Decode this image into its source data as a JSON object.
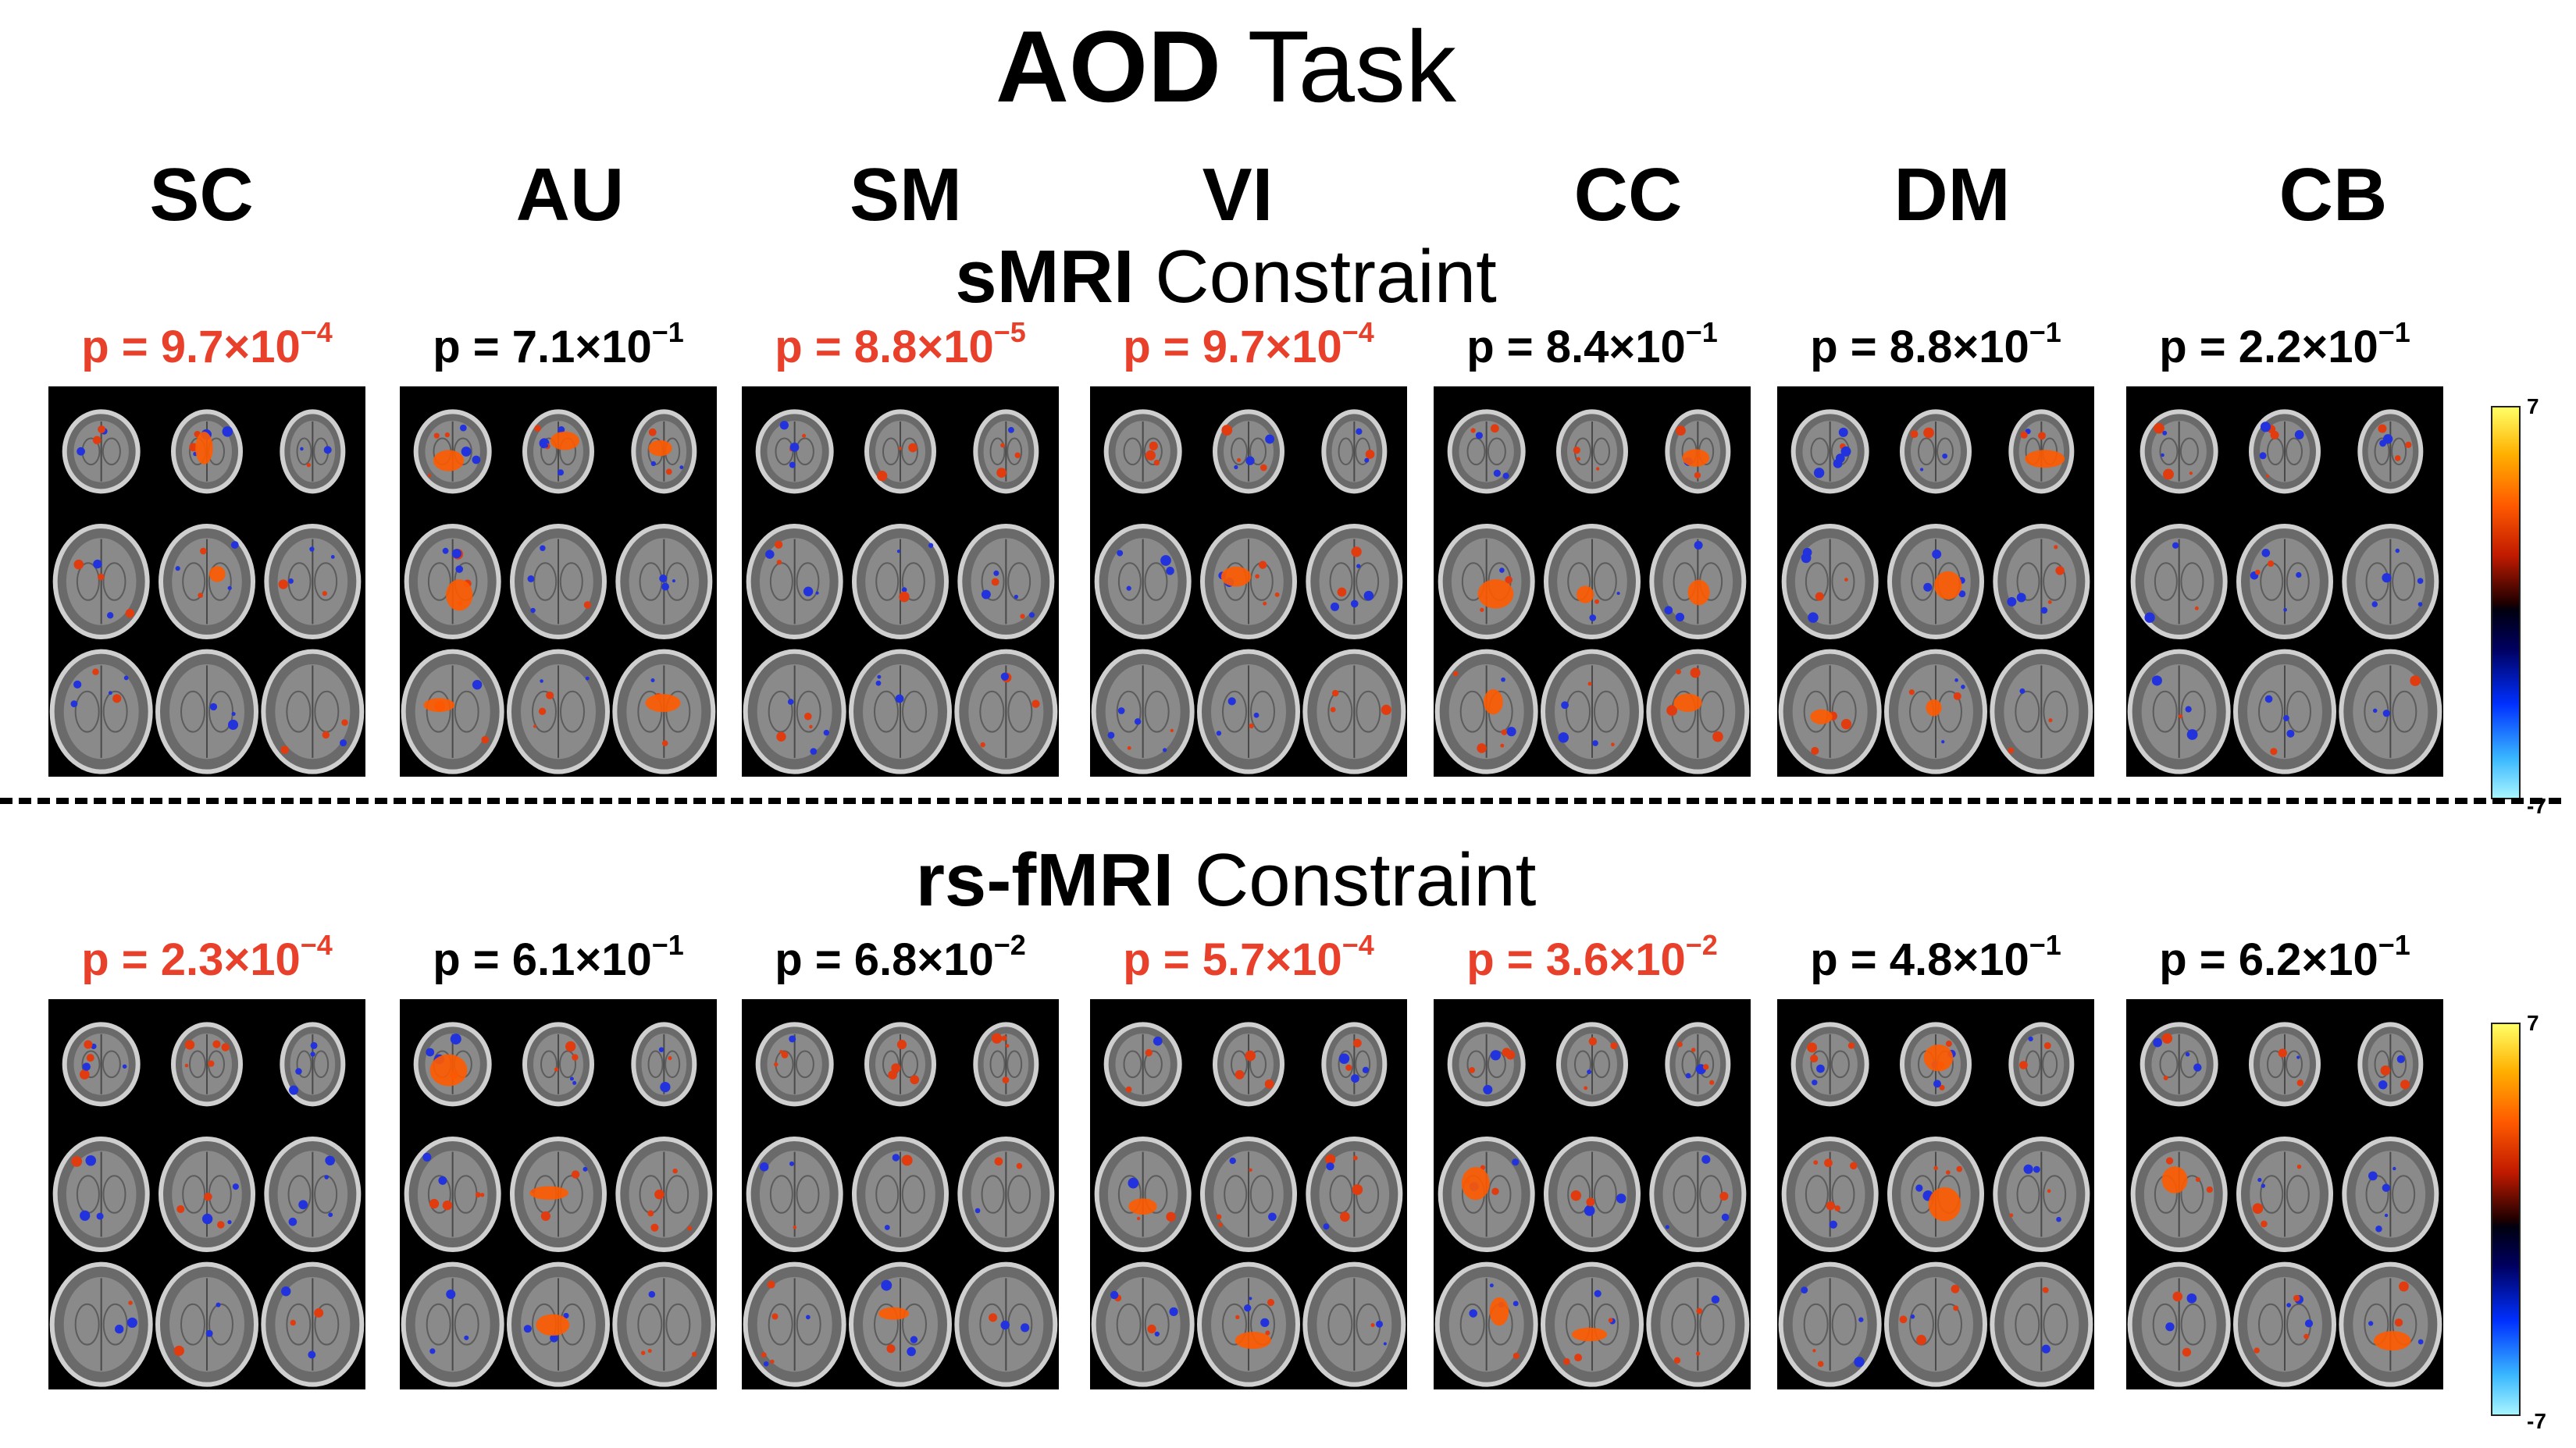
{
  "title": {
    "bold": "AOD",
    "rest": " Task"
  },
  "domains": [
    "SC",
    "AU",
    "SM",
    "VI",
    "CC",
    "DM",
    "CB"
  ],
  "rows": [
    {
      "label_bold": "sMRI",
      "label_rest": " Constraint",
      "pvalues": [
        {
          "mantissa": "p = 9.7×10",
          "exp": "−4",
          "significant": true
        },
        {
          "mantissa": "p = 7.1×10",
          "exp": "−1",
          "significant": false
        },
        {
          "mantissa": "p = 8.8×10",
          "exp": "−5",
          "significant": true
        },
        {
          "mantissa": "p = 9.7×10",
          "exp": "−4",
          "significant": true
        },
        {
          "mantissa": "p = 8.4×10",
          "exp": "−1",
          "significant": false
        },
        {
          "mantissa": "p = 8.8×10",
          "exp": "−1",
          "significant": false
        },
        {
          "mantissa": "p = 2.2×10",
          "exp": "−1",
          "significant": false
        }
      ]
    },
    {
      "label_bold": "rs-fMRI",
      "label_rest": " Constraint",
      "pvalues": [
        {
          "mantissa": "p = 2.3×10",
          "exp": "−4",
          "significant": true
        },
        {
          "mantissa": "p = 6.1×10",
          "exp": "−1",
          "significant": false
        },
        {
          "mantissa": "p = 6.8×10",
          "exp": "−2",
          "significant": false
        },
        {
          "mantissa": "p = 5.7×10",
          "exp": "−4",
          "significant": true
        },
        {
          "mantissa": "p = 3.6×10",
          "exp": "−2",
          "significant": true
        },
        {
          "mantissa": "p = 4.8×10",
          "exp": "−1",
          "significant": false
        },
        {
          "mantissa": "p = 6.2×10",
          "exp": "−1",
          "significant": false
        }
      ]
    }
  ],
  "colorbar": {
    "max": "7",
    "min": "-7"
  },
  "colors": {
    "significant": "#e8402a",
    "not_significant": "#000000"
  }
}
